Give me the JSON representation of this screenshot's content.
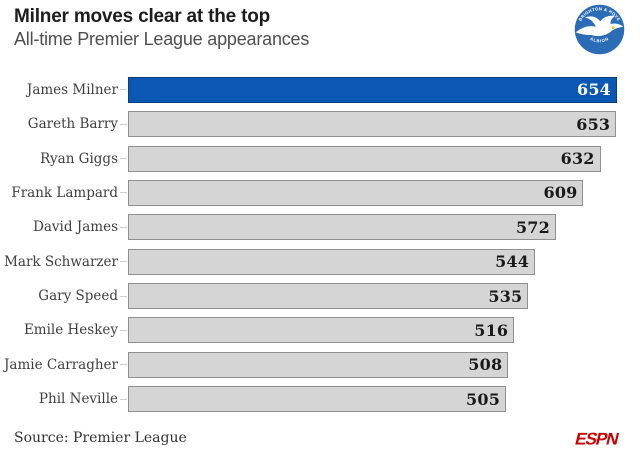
{
  "header": {
    "title": "Milner moves clear at the top",
    "subtitle": "All-time Premier League appearances",
    "badge": {
      "name": "brighton-hove-albion-crest",
      "text_top": "BRIGHTON & HOVE",
      "text_bottom": "ALBION",
      "ring_color": "#2a6db6",
      "gull_color": "#ffffff",
      "beak_color": "#f5c518"
    }
  },
  "chart_data": {
    "type": "bar",
    "orientation": "horizontal",
    "title": "Milner moves clear at the top",
    "subtitle": "All-time Premier League appearances",
    "categories": [
      "James Milner",
      "Gareth Barry",
      "Ryan Giggs",
      "Frank Lampard",
      "David James",
      "Mark Schwarzer",
      "Gary Speed",
      "Emile Heskey",
      "Jamie Carragher",
      "Phil Neville"
    ],
    "values": [
      654,
      653,
      632,
      609,
      572,
      544,
      535,
      516,
      508,
      505
    ],
    "xlim": [
      0,
      654
    ],
    "grid": false,
    "value_labels": "inside-end",
    "highlight_index": 0,
    "highlight_color": "#0a58b4",
    "bar_color": "#d5d5d5",
    "bar_border_color": "#909090"
  },
  "footer": {
    "source": "Source: Premier League",
    "logo": "ESPN",
    "logo_color": "#cc0000"
  }
}
